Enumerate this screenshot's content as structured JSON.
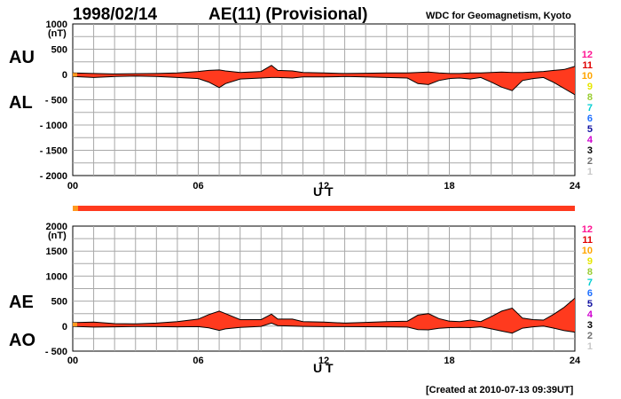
{
  "header": {
    "date": "1998/02/14",
    "title": "AE(11) (Provisional)",
    "source": "WDC for Geomagnetism, Kyoto"
  },
  "footer": {
    "created": "[Created at 2010-07-13 09:39UT]"
  },
  "colors": {
    "fill": "#ff3a1e",
    "grid": "#a8a8a8",
    "station_levels": {
      "12": "#ff1493",
      "11": "#e00000",
      "10": "#ffa500",
      "9": "#e6e600",
      "8": "#9acd32",
      "7": "#00ced1",
      "6": "#1e6fff",
      "5": "#1010a0",
      "4": "#d000d0",
      "3": "#000000",
      "2": "#707070",
      "1": "#c8c8c8"
    },
    "bar_main": "#ff3a1e",
    "bar_start": "#ff9a20"
  },
  "station_scale_labels": [
    "12",
    "11",
    "10",
    "9",
    "8",
    "7",
    "6",
    "5",
    "4",
    "3",
    "2",
    "1"
  ],
  "chart_data": [
    {
      "type": "area",
      "panel": "top",
      "series_labels": [
        "AU",
        "AL"
      ],
      "ylabel": "(nT)",
      "xlabel": "U T",
      "x_ticks": [
        "00",
        "06",
        "12",
        "18",
        "24"
      ],
      "y_ticks": [
        "1000",
        "500",
        "0",
        "- 500",
        "- 1000",
        "- 1500",
        "- 2000"
      ],
      "ylim": [
        -2000,
        1000
      ],
      "xlim": [
        0,
        24
      ],
      "series": [
        {
          "x": [
            0,
            1,
            2,
            3,
            4,
            5,
            6,
            6.5,
            7,
            7.3,
            8,
            9,
            9.5,
            9.8,
            10.5,
            11,
            12,
            13,
            14,
            15,
            16,
            16.5,
            17,
            17.5,
            18,
            18.5,
            19,
            19.5,
            20,
            20.5,
            21,
            21.5,
            22,
            22.5,
            23,
            23.5,
            24
          ],
          "values": [
            30,
            20,
            10,
            15,
            20,
            30,
            60,
            80,
            90,
            70,
            40,
            60,
            180,
            80,
            70,
            40,
            30,
            20,
            25,
            30,
            30,
            40,
            50,
            30,
            20,
            20,
            30,
            30,
            40,
            50,
            40,
            40,
            50,
            60,
            80,
            100,
            160
          ]
        },
        {
          "x": [
            0,
            1,
            2,
            3,
            4,
            5,
            6,
            6.5,
            7,
            7.3,
            8,
            9,
            9.5,
            9.8,
            10.5,
            11,
            12,
            13,
            14,
            15,
            16,
            16.5,
            17,
            17.5,
            18,
            18.5,
            19,
            19.5,
            20,
            20.5,
            21,
            21.5,
            22,
            22.5,
            23,
            23.5,
            24
          ],
          "values": [
            -40,
            -60,
            -40,
            -30,
            -40,
            -60,
            -80,
            -150,
            -260,
            -180,
            -90,
            -70,
            -60,
            -60,
            -70,
            -50,
            -50,
            -40,
            -50,
            -60,
            -70,
            -180,
            -200,
            -120,
            -80,
            -70,
            -90,
            -60,
            -150,
            -250,
            -320,
            -120,
            -80,
            -60,
            -160,
            -280,
            -400
          ]
        }
      ]
    },
    {
      "type": "area",
      "panel": "bottom",
      "series_labels": [
        "AE",
        "AO"
      ],
      "ylabel": "(nT)",
      "xlabel": "U T",
      "x_ticks": [
        "00",
        "06",
        "12",
        "18",
        "24"
      ],
      "y_ticks": [
        "2000",
        "1500",
        "1000",
        "500",
        "0",
        "- 500"
      ],
      "ylim": [
        -500,
        2000
      ],
      "xlim": [
        0,
        24
      ],
      "series": [
        {
          "x": [
            0,
            1,
            2,
            3,
            4,
            5,
            6,
            6.5,
            7,
            7.3,
            8,
            9,
            9.5,
            9.8,
            10.5,
            11,
            12,
            13,
            14,
            15,
            16,
            16.5,
            17,
            17.5,
            18,
            18.5,
            19,
            19.5,
            20,
            20.5,
            21,
            21.5,
            22,
            22.5,
            23,
            23.5,
            24
          ],
          "values": [
            70,
            80,
            50,
            45,
            60,
            90,
            140,
            230,
            300,
            250,
            130,
            130,
            240,
            140,
            140,
            90,
            80,
            60,
            75,
            90,
            100,
            220,
            250,
            150,
            100,
            90,
            120,
            90,
            190,
            300,
            360,
            160,
            130,
            120,
            240,
            380,
            560
          ]
        },
        {
          "x": [
            0,
            1,
            2,
            3,
            4,
            5,
            6,
            6.5,
            7,
            7.3,
            8,
            9,
            9.5,
            9.8,
            10.5,
            11,
            12,
            13,
            14,
            15,
            16,
            16.5,
            17,
            17.5,
            18,
            18.5,
            19,
            19.5,
            20,
            20.5,
            21,
            21.5,
            22,
            22.5,
            23,
            23.5,
            24
          ],
          "values": [
            -5,
            -20,
            -15,
            -8,
            -10,
            -15,
            -10,
            -35,
            -85,
            -55,
            -25,
            -5,
            60,
            10,
            0,
            -5,
            -10,
            -10,
            -12,
            -15,
            -20,
            -70,
            -75,
            -45,
            -30,
            -25,
            -30,
            -15,
            -55,
            -100,
            -140,
            -40,
            -15,
            0,
            -40,
            -90,
            -120
          ]
        }
      ]
    }
  ]
}
